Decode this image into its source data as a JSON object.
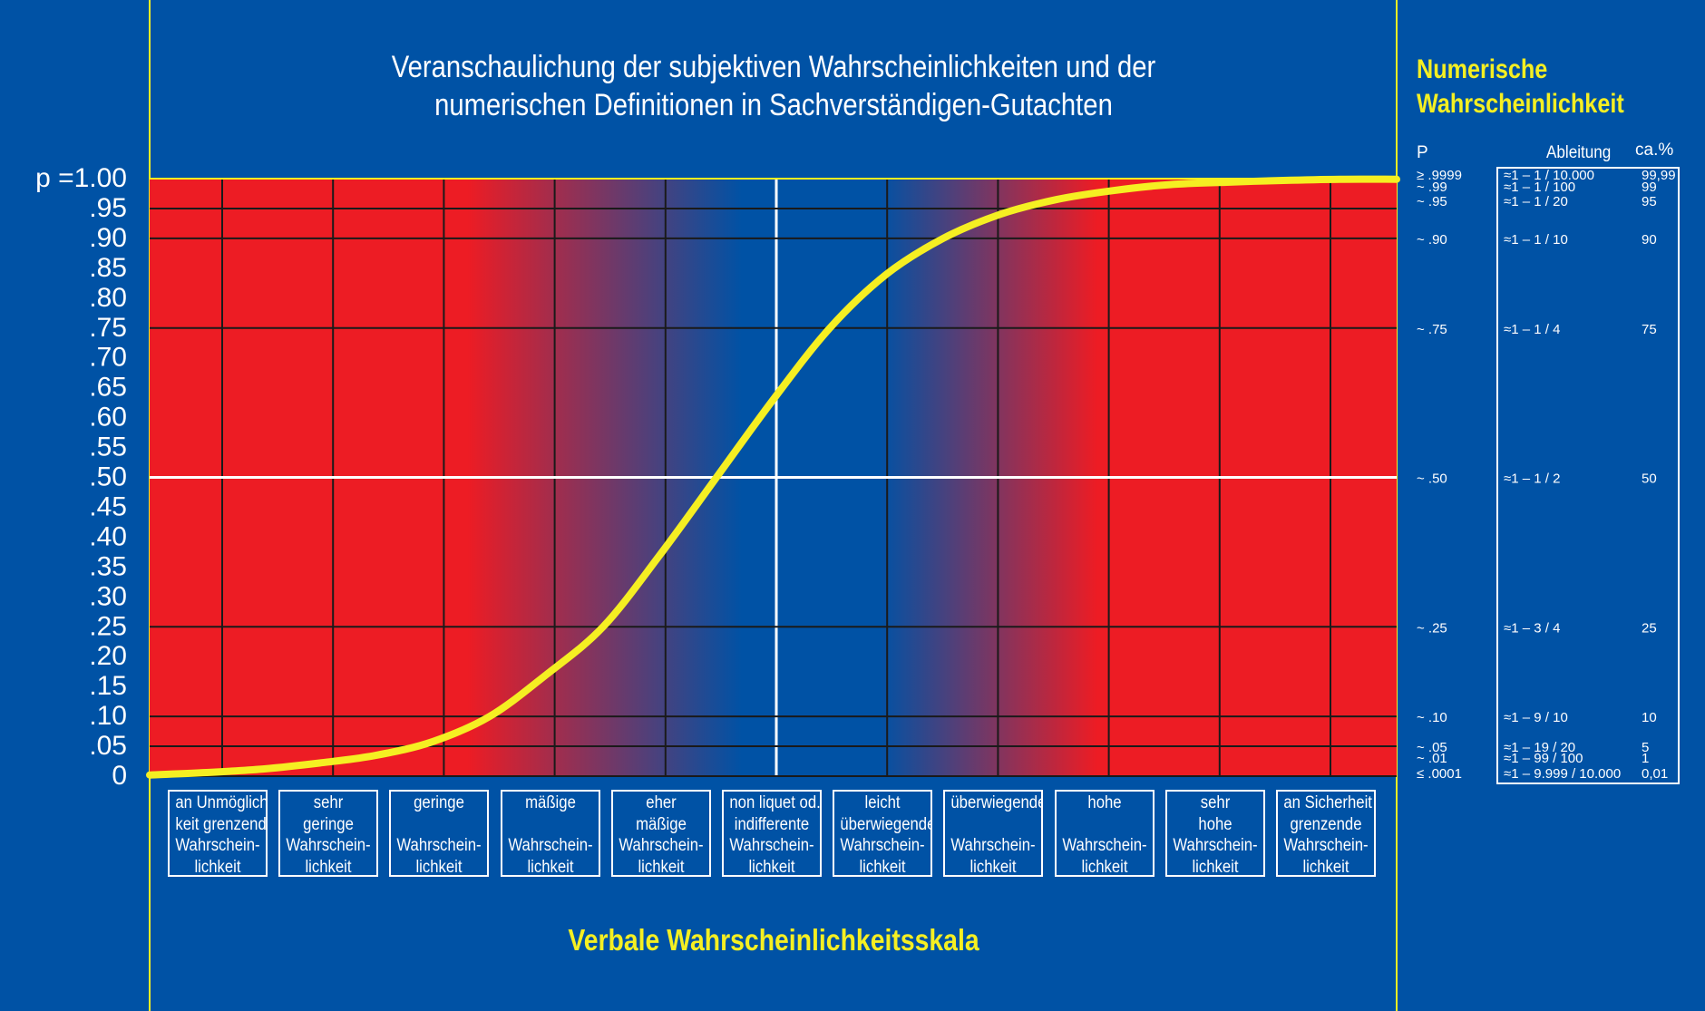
{
  "title_lines": [
    "Veranschaulichung der subjektiven Wahrscheinlichkeiten und der",
    "numerischen Definitionen in Sachverständigen-Gutachten"
  ],
  "right_panel": {
    "title_lines": [
      "Numerische",
      "Wahrscheinlichkeit"
    ],
    "headers": {
      "p": "P",
      "ableitung": "Ableitung",
      "percent": "ca.%"
    },
    "rows": [
      {
        "p": "≥ .9999",
        "ableitung": "≈1 – 1 / 10.000",
        "percent": "99,99",
        "value": 0.9999
      },
      {
        "p": "~ .99",
        "ableitung": "≈1 – 1 / 100",
        "percent": "99",
        "value": 0.99
      },
      {
        "p": "~ .95",
        "ableitung": "≈1 – 1 / 20",
        "percent": "95",
        "value": 0.95
      },
      {
        "p": "~ .90",
        "ableitung": "≈1 – 1 / 10",
        "percent": "90",
        "value": 0.9
      },
      {
        "p": "~ .75",
        "ableitung": "≈1 – 1 / 4",
        "percent": "75",
        "value": 0.75
      },
      {
        "p": "~ .50",
        "ableitung": "≈1 – 1 / 2",
        "percent": "50",
        "value": 0.5
      },
      {
        "p": "~ .25",
        "ableitung": "≈1 – 3 / 4",
        "percent": "25",
        "value": 0.25
      },
      {
        "p": "~ .10",
        "ableitung": "≈1 – 9 / 10",
        "percent": "10",
        "value": 0.1
      },
      {
        "p": "~ .05",
        "ableitung": "≈1 – 19 / 20",
        "percent": "5",
        "value": 0.05
      },
      {
        "p": "~ .01",
        "ableitung": "≈1 – 99 / 100",
        "percent": "1",
        "value": 0.01
      },
      {
        "p": "≤ .0001",
        "ableitung": "≈1 – 9.999 / 10.000",
        "percent": "0,01",
        "value": 0.0001
      }
    ]
  },
  "y_ticks": [
    "p =1.00",
    ".95",
    ".90",
    ".85",
    ".80",
    ".75",
    ".70",
    ".65",
    ".60",
    ".55",
    ".50",
    ".45",
    ".40",
    ".35",
    ".30",
    ".25",
    ".20",
    ".15",
    ".10",
    ".05",
    "0"
  ],
  "categories": [
    [
      "an Unmöglich-",
      "keit grenzende",
      "Wahrschein-",
      "lichkeit"
    ],
    [
      "sehr",
      "geringe",
      "Wahrschein-",
      "lichkeit"
    ],
    [
      "geringe",
      "",
      "Wahrschein-",
      "lichkeit"
    ],
    [
      "mäßige",
      "",
      "Wahrschein-",
      "lichkeit"
    ],
    [
      "eher",
      "mäßige",
      "Wahrschein-",
      "lichkeit"
    ],
    [
      "non liquet od.",
      "indifferente",
      "Wahrschein-",
      "lichkeit"
    ],
    [
      "leicht",
      "überwiegende",
      "Wahrschein-",
      "lichkeit"
    ],
    [
      "überwiegende",
      "",
      "Wahrschein-",
      "lichkeit"
    ],
    [
      "hohe",
      "",
      "Wahrschein-",
      "lichkeit"
    ],
    [
      "sehr",
      "hohe",
      "Wahrschein-",
      "lichkeit"
    ],
    [
      "an Sicherheit",
      "grenzende",
      "Wahrschein-",
      "lichkeit"
    ]
  ],
  "footer": "Verbale Wahrscheinlichkeitsskala",
  "chart_data": {
    "type": "line",
    "ylim": [
      0,
      1
    ],
    "y_gridlines": [
      0.05,
      0.1,
      0.25,
      0.5,
      0.75,
      0.9,
      0.95,
      1.0
    ],
    "curve_points": [
      [
        0.0,
        0.002
      ],
      [
        0.5,
        0.006
      ],
      [
        1.0,
        0.012
      ],
      [
        1.5,
        0.022
      ],
      [
        2.0,
        0.035
      ],
      [
        2.5,
        0.058
      ],
      [
        3.0,
        0.1
      ],
      [
        3.5,
        0.17
      ],
      [
        4.0,
        0.25
      ],
      [
        4.5,
        0.37
      ],
      [
        5.0,
        0.5
      ],
      [
        5.5,
        0.63
      ],
      [
        6.0,
        0.75
      ],
      [
        6.5,
        0.84
      ],
      [
        7.0,
        0.9
      ],
      [
        7.5,
        0.94
      ],
      [
        8.0,
        0.965
      ],
      [
        8.5,
        0.98
      ],
      [
        9.0,
        0.99
      ],
      [
        9.5,
        0.994
      ],
      [
        10.0,
        0.997
      ],
      [
        10.5,
        0.999
      ],
      [
        11.0,
        0.999
      ]
    ],
    "colors": {
      "background": "#0052a5",
      "band_red": "#ed1c24",
      "band_blue": "#0052a5",
      "curve": "#f5ef22",
      "grid": "#1a1a1a",
      "axis_highlight": "#ffffff",
      "frame": "#f5ef22"
    }
  }
}
